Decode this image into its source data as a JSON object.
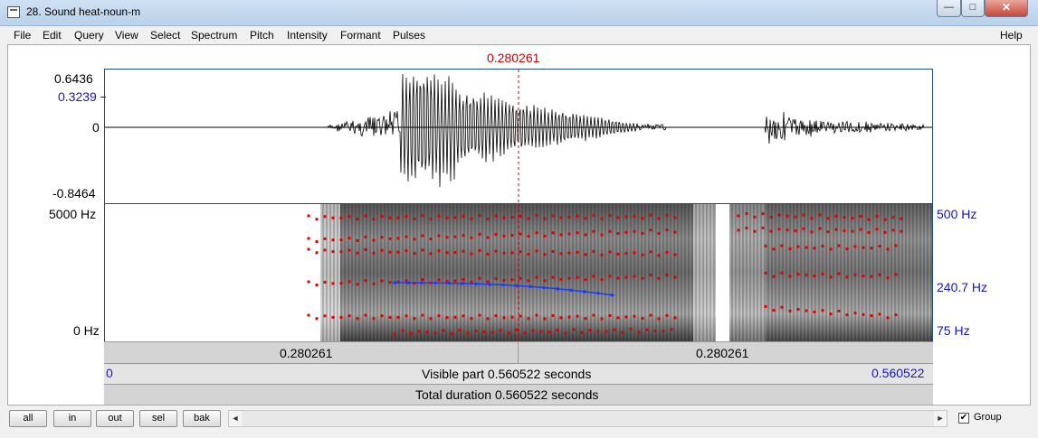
{
  "window": {
    "title": "28. Sound heat-noun-m",
    "min_glyph": "—",
    "max_glyph": "□",
    "close_glyph": "✕"
  },
  "menu": [
    "File",
    "Edit",
    "Query",
    "View",
    "Select",
    "Spectrum",
    "Pitch",
    "Intensity",
    "Formant",
    "Pulses",
    "Help"
  ],
  "cursor": {
    "time_label": "0.280261"
  },
  "waveform": {
    "y_max_label": "0.6436",
    "y_mark_label": "0.3239",
    "y_zero_label": "0",
    "y_min_label": "-0.8464"
  },
  "spectrogram": {
    "y_top_label": "5000 Hz",
    "y_bottom_label": "0 Hz",
    "pitch_top_label": "500 Hz",
    "pitch_mid_label": "240.7 Hz",
    "pitch_bottom_label": "75 Hz"
  },
  "bars": {
    "left_segment": "0.280261",
    "right_segment": "0.280261",
    "visible_start": "0",
    "visible_label": "Visible part 0.560522 seconds",
    "visible_end": "0.560522",
    "total_label": "Total duration 0.560522 seconds"
  },
  "toolbar": {
    "buttons": [
      "all",
      "in",
      "out",
      "sel",
      "bak"
    ],
    "left_arrow": "◄",
    "right_arrow": "►",
    "group_label": "Group",
    "group_checked": "✔"
  },
  "colors": {
    "cursor": "#d00000",
    "pitch_curve": "#1a3cff",
    "formant_dots": "#e00000",
    "axis_blue": "#1515c8"
  }
}
